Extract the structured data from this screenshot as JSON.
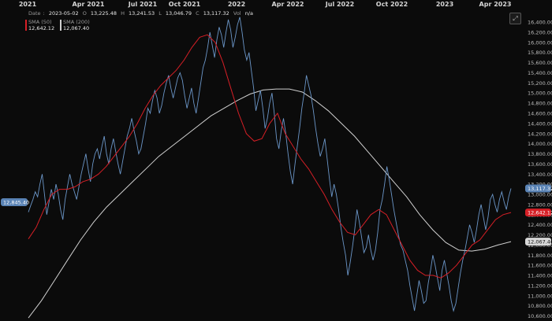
{
  "chart_data": {
    "type": "line",
    "x_ticks": [
      "2021",
      "Apr 2021",
      "Jul 2021",
      "Oct 2021",
      "2022",
      "Apr 2022",
      "Jul 2022",
      "Oct 2022",
      "2023",
      "Apr 2023"
    ],
    "y_ticks": [
      "16,400.00",
      "16,200.00",
      "16,000.00",
      "15,800.00",
      "15,600.00",
      "15,400.00",
      "15,200.00",
      "15,000.00",
      "14,800.00",
      "14,600.00",
      "14,400.00",
      "14,200.00",
      "14,000.00",
      "13,800.00",
      "13,600.00",
      "13,400.00",
      "13,200.00",
      "13,000.00",
      "12,800.00",
      "12,600.00",
      "12,400.00",
      "12,200.00",
      "12,000.00",
      "11,800.00",
      "11,600.00",
      "11,400.00",
      "11,200.00",
      "11,000.00",
      "10,800.00",
      "10,600.00"
    ],
    "ylim": [
      10500,
      16650
    ],
    "price_series": {
      "color": "#6b96c8",
      "values": [
        12650,
        12780,
        12900,
        13050,
        12950,
        13200,
        13400,
        13000,
        12600,
        12850,
        13100,
        12900,
        13200,
        13000,
        12700,
        12500,
        12900,
        13150,
        13400,
        13200,
        13050,
        12900,
        13150,
        13400,
        13600,
        13800,
        13500,
        13250,
        13600,
        13800,
        13900,
        13700,
        13950,
        14150,
        13800,
        13600,
        13900,
        14100,
        13850,
        13600,
        13400,
        13650,
        13900,
        14150,
        14300,
        14500,
        14250,
        14050,
        13800,
        13900,
        14150,
        14400,
        14700,
        14600,
        14850,
        15050,
        14900,
        14600,
        14750,
        15000,
        15200,
        15350,
        15100,
        14900,
        15100,
        15300,
        15400,
        15250,
        14950,
        14700,
        14900,
        15100,
        14800,
        14600,
        14900,
        15200,
        15500,
        15650,
        15900,
        16200,
        15950,
        15700,
        16050,
        16300,
        16150,
        15900,
        16200,
        16450,
        16250,
        15900,
        16100,
        16350,
        16500,
        16200,
        15850,
        15650,
        15800,
        15450,
        15100,
        14650,
        14850,
        15050,
        14700,
        14300,
        14500,
        14800,
        15000,
        14600,
        14100,
        13900,
        14250,
        14500,
        14200,
        13800,
        13450,
        13200,
        13600,
        13950,
        14300,
        14700,
        15000,
        15350,
        15150,
        14950,
        14650,
        14300,
        14000,
        13750,
        13900,
        14100,
        13700,
        13300,
        12950,
        13200,
        13000,
        12700,
        12350,
        12050,
        11800,
        11400,
        11650,
        11950,
        12300,
        12700,
        12450,
        12150,
        11850,
        11950,
        12200,
        11900,
        11700,
        11900,
        12250,
        12700,
        12900,
        13200,
        13550,
        13300,
        13000,
        12700,
        12450,
        12200,
        12000,
        11900,
        11700,
        11500,
        11200,
        10950,
        10700,
        11000,
        11300,
        11100,
        10850,
        10900,
        11250,
        11500,
        11800,
        11600,
        11350,
        11100,
        11500,
        11700,
        11450,
        11200,
        10900,
        10700,
        10850,
        11150,
        11450,
        11700,
        11900,
        12150,
        12400,
        12250,
        12050,
        12300,
        12600,
        12800,
        12550,
        12300,
        12550,
        12900,
        13000,
        12800,
        12650,
        12900,
        13050,
        12850,
        12700,
        12950,
        13117
      ]
    },
    "sma50": {
      "name": "SMA (50)",
      "value_label": "12,642.12",
      "color": "#d61f26",
      "values": [
        12120,
        12350,
        12700,
        13000,
        13100,
        13100,
        13150,
        13250,
        13300,
        13400,
        13550,
        13750,
        13950,
        14150,
        14400,
        14700,
        14950,
        15150,
        15300,
        15450,
        15650,
        15900,
        16100,
        16150,
        16000,
        15600,
        15100,
        14600,
        14200,
        14050,
        14100,
        14400,
        14600,
        14200,
        13950,
        13700,
        13500,
        13250,
        13000,
        12700,
        12450,
        12250,
        12200,
        12400,
        12600,
        12700,
        12600,
        12300,
        12000,
        11700,
        11500,
        11400,
        11400,
        11350,
        11450,
        11600,
        11800,
        12000,
        12100,
        12300,
        12500,
        12600,
        12642
      ]
    },
    "sma200": {
      "name": "SMA (200)",
      "value_label": "12,067.40",
      "color": "#d0d0d0",
      "values": [
        10560,
        10900,
        11300,
        11700,
        12100,
        12450,
        12750,
        13000,
        13250,
        13500,
        13750,
        13950,
        14150,
        14350,
        14550,
        14700,
        14850,
        14980,
        15060,
        15080,
        15080,
        15020,
        14850,
        14650,
        14400,
        14150,
        13850,
        13550,
        13250,
        12950,
        12600,
        12300,
        12050,
        11900,
        11880,
        11920,
        12000,
        12067
      ]
    },
    "ohlc": {
      "date_label": "Date",
      "date": "2023-05-02",
      "open_label": "O",
      "open": "13,225.48",
      "high_label": "H",
      "high": "13,241.53",
      "low_label": "L",
      "low": "13,046.79",
      "close_label": "C",
      "close": "13,117.32",
      "vol_label": "Vol",
      "vol": "n/a"
    },
    "tags": {
      "left_value": "12,845.40",
      "close_value": "13,117.32",
      "sma50_value": "12,642.12",
      "sma200_value": "12,067.40"
    },
    "grid": false,
    "legend_placement": "top-left"
  },
  "ui": {
    "expand_icon": "expand-icon",
    "background_color": "#0b0b0b"
  }
}
